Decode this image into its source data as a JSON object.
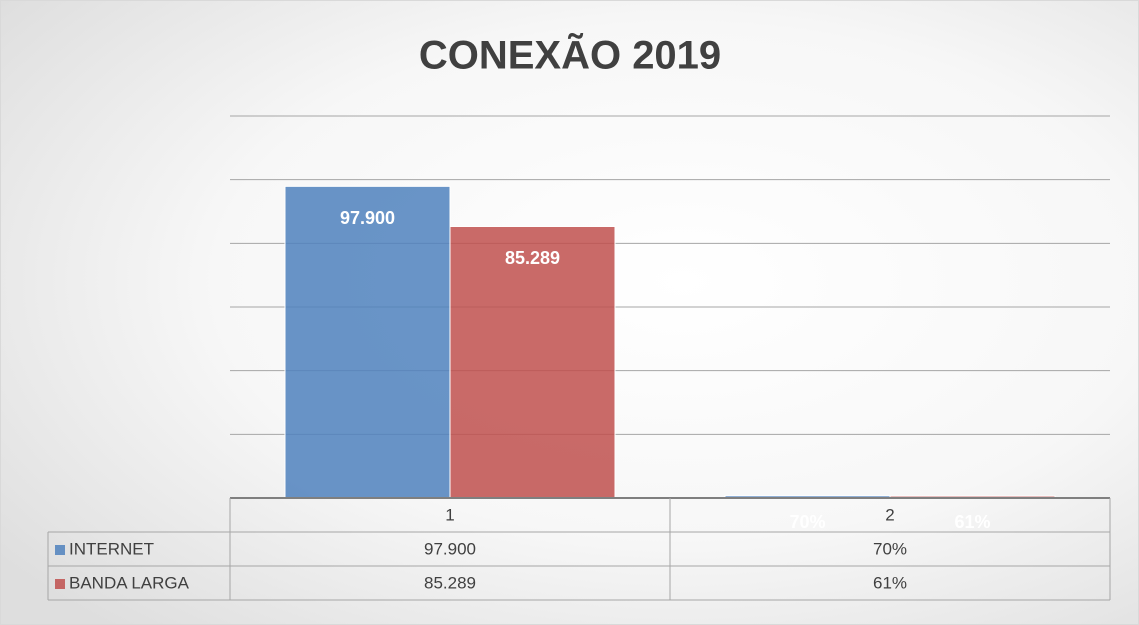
{
  "chart_data": {
    "type": "bar",
    "title": "CONEXÃO 2019",
    "categories": [
      "1",
      "2"
    ],
    "series": [
      {
        "name": "INTERNET",
        "color": "#4f81bd",
        "values": [
          97.9,
          0.7
        ],
        "value_labels": [
          "97.900",
          "70%"
        ]
      },
      {
        "name": "BANDA LARGA",
        "color": "#c0504d",
        "values": [
          85.289,
          0.61
        ],
        "value_labels": [
          "85.289",
          "61%"
        ]
      }
    ],
    "ylim": [
      0,
      120
    ],
    "yticks": [
      0,
      20,
      40,
      60,
      80,
      100,
      120
    ],
    "grid": true,
    "legend": "data-table"
  }
}
